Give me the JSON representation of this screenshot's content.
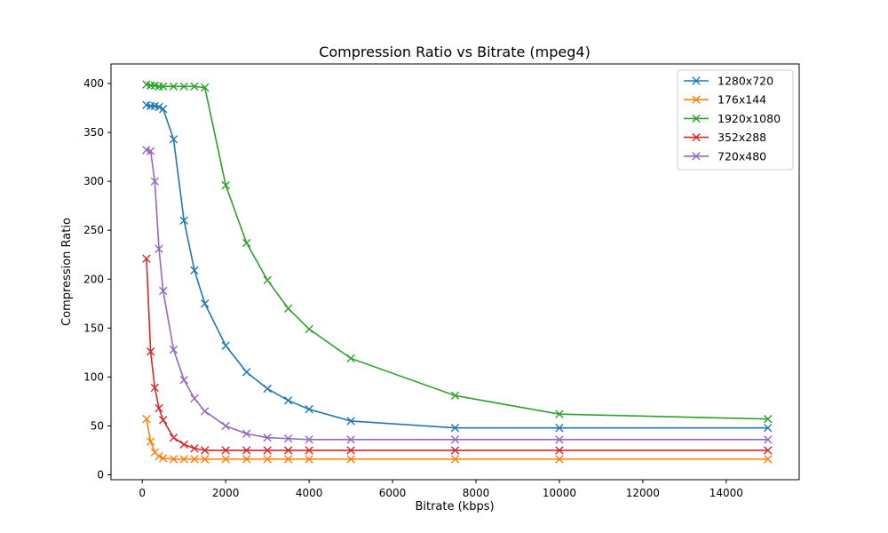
{
  "chart_data": {
    "type": "line",
    "title": "Compression Ratio vs Bitrate (mpeg4)",
    "xlabel": "Bitrate (kbps)",
    "ylabel": "Compression Ratio",
    "xlim": [
      -750,
      15750
    ],
    "ylim": [
      -5,
      420
    ],
    "xticks": [
      0,
      2000,
      4000,
      6000,
      8000,
      10000,
      12000,
      14000
    ],
    "yticks": [
      0,
      50,
      100,
      150,
      200,
      250,
      300,
      350,
      400
    ],
    "grid": false,
    "legend_position": "top-right",
    "marker": "x",
    "x": [
      100,
      200,
      300,
      400,
      500,
      750,
      1000,
      1250,
      1500,
      2000,
      2500,
      3000,
      3500,
      4000,
      5000,
      7500,
      10000,
      15000
    ],
    "series": [
      {
        "name": "1280x720",
        "color": "#1f77b4",
        "values": [
          378,
          377,
          377,
          376,
          374,
          343,
          260,
          209,
          175,
          132,
          105,
          88,
          76,
          67,
          55,
          48,
          48,
          48
        ]
      },
      {
        "name": "176x144",
        "color": "#ff7f0e",
        "values": [
          57,
          34,
          23,
          19,
          17,
          16,
          16,
          16,
          16,
          16,
          16,
          16,
          16,
          16,
          16,
          16,
          16,
          16
        ]
      },
      {
        "name": "1920x1080",
        "color": "#2ca02c",
        "values": [
          399,
          398,
          398,
          397,
          397,
          397,
          397,
          397,
          396,
          296,
          237,
          199,
          170,
          149,
          119,
          81,
          62,
          57
        ]
      },
      {
        "name": "352x288",
        "color": "#d62728",
        "values": [
          221,
          126,
          89,
          68,
          56,
          38,
          31,
          27,
          25,
          25,
          25,
          25,
          25,
          25,
          25,
          25,
          25,
          25
        ]
      },
      {
        "name": "720x480",
        "color": "#9467bd",
        "values": [
          332,
          331,
          300,
          231,
          188,
          128,
          97,
          78,
          65,
          50,
          42,
          38,
          37,
          36,
          36,
          36,
          36,
          36
        ]
      }
    ]
  }
}
